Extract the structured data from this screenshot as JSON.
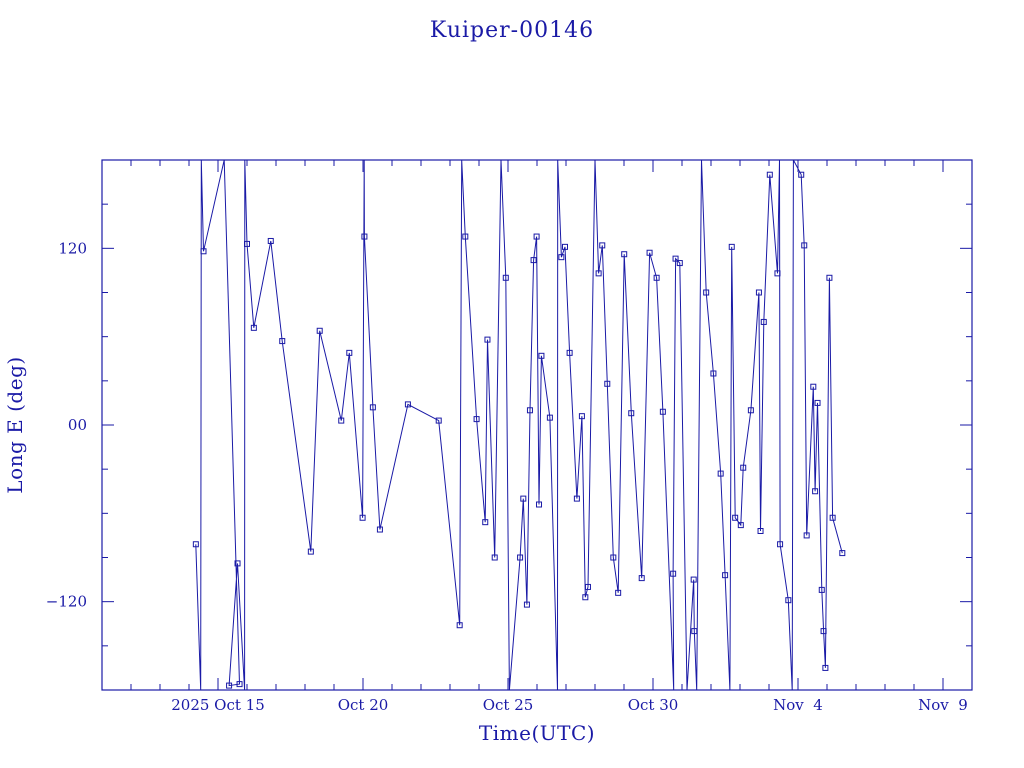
{
  "chart_data": {
    "type": "line",
    "title": "Kuiper-00146",
    "xlabel": "Time(UTC)",
    "ylabel": "Long E (deg)",
    "ylim": [
      -180,
      180
    ],
    "xlim": [
      "2025-10-11T00:00",
      "2025-11-10T00:00"
    ],
    "xticks": [
      {
        "date": "2025-10-15",
        "label": "2025 Oct 15"
      },
      {
        "date": "2025-10-20",
        "label": "Oct 20"
      },
      {
        "date": "2025-10-25",
        "label": "Oct 25"
      },
      {
        "date": "2025-10-30",
        "label": "Oct 30"
      },
      {
        "date": "2025-11-04",
        "label": "Nov  4"
      },
      {
        "date": "2025-11-09",
        "label": "Nov  9"
      }
    ],
    "yticks": [
      {
        "value": 120,
        "label": "120"
      },
      {
        "value": 0,
        "label": "00"
      },
      {
        "value": -120,
        "label": "−120"
      }
    ],
    "grid": false,
    "marker": "square",
    "color": "#1a1aa6",
    "series": [
      {
        "points": [
          [
            "2025-10-14T05:40",
            -81
          ],
          [
            "2025-10-14T09:40",
            -180
          ],
          [
            "2025-10-14T10:10",
            180
          ],
          [
            "2025-10-14T12:00",
            118
          ],
          [
            "2025-10-15T05:10",
            180
          ],
          [
            "2025-10-15T17:50",
            -176
          ],
          [
            "2025-10-15T09:10",
            -177
          ],
          [
            "2025-10-15T16:10",
            -94
          ],
          [
            "2025-10-15T22:00",
            -180
          ],
          [
            "2025-10-15T22:10",
            180
          ],
          [
            "2025-10-16T00:00",
            123
          ],
          [
            "2025-10-16T05:40",
            66
          ],
          [
            "2025-10-16T19:40",
            125
          ],
          [
            "2025-10-17T05:10",
            57
          ],
          [
            "2025-10-18T04:50",
            -86
          ],
          [
            "2025-10-18T12:10",
            64
          ],
          [
            "2025-10-19T06:00",
            3
          ],
          [
            "2025-10-19T12:40",
            49
          ],
          [
            "2025-10-19T23:40",
            -63
          ],
          [
            "2025-10-20T01:00",
            180
          ],
          [
            "2025-10-20T01:10",
            128
          ],
          [
            "2025-10-20T08:10",
            12
          ],
          [
            "2025-10-20T14:00",
            -71
          ],
          [
            "2025-10-21T13:10",
            14
          ],
          [
            "2025-10-22T14:40",
            3
          ],
          [
            "2025-10-23T08:00",
            -136
          ],
          [
            "2025-10-23T09:40",
            180
          ],
          [
            "2025-10-23T12:40",
            128
          ],
          [
            "2025-10-23T22:00",
            4
          ],
          [
            "2025-10-24T05:10",
            -66
          ],
          [
            "2025-10-24T07:00",
            58
          ],
          [
            "2025-10-24T13:00",
            -90
          ],
          [
            "2025-10-24T18:10",
            180
          ],
          [
            "2025-10-24T22:10",
            100
          ],
          [
            "2025-10-25T01:10",
            -180
          ],
          [
            "2025-10-25T10:00",
            -90
          ],
          [
            "2025-10-25T12:40",
            -50
          ],
          [
            "2025-10-25T15:40",
            -122
          ],
          [
            "2025-10-25T18:10",
            10
          ],
          [
            "2025-10-25T21:10",
            112
          ],
          [
            "2025-10-25T23:40",
            128
          ],
          [
            "2025-10-26T01:40",
            -54
          ],
          [
            "2025-10-26T03:40",
            47
          ],
          [
            "2025-10-26T10:40",
            5
          ],
          [
            "2025-10-26T17:00",
            -180
          ],
          [
            "2025-10-26T17:10",
            180
          ],
          [
            "2025-10-26T20:10",
            114
          ],
          [
            "2025-10-26T23:10",
            121
          ],
          [
            "2025-10-27T03:00",
            49
          ],
          [
            "2025-10-27T09:00",
            -50
          ],
          [
            "2025-10-27T13:10",
            6
          ],
          [
            "2025-10-27T16:00",
            -117
          ],
          [
            "2025-10-27T18:10",
            -110
          ],
          [
            "2025-10-28T00:00",
            180
          ],
          [
            "2025-10-28T03:00",
            103
          ],
          [
            "2025-10-28T06:00",
            122
          ],
          [
            "2025-10-28T10:10",
            28
          ],
          [
            "2025-10-28T15:10",
            -90
          ],
          [
            "2025-10-28T19:10",
            -114
          ],
          [
            "2025-10-29T00:10",
            116
          ],
          [
            "2025-10-29T06:00",
            8
          ],
          [
            "2025-10-29T14:40",
            -104
          ],
          [
            "2025-10-29T21:10",
            117
          ],
          [
            "2025-10-30T03:00",
            100
          ],
          [
            "2025-10-30T08:10",
            9
          ],
          [
            "2025-10-30T17:10",
            -180
          ],
          [
            "2025-10-30T16:40",
            -101
          ],
          [
            "2025-10-30T18:40",
            113
          ],
          [
            "2025-10-30T22:10",
            110
          ],
          [
            "2025-10-31T04:10",
            -180
          ],
          [
            "2025-10-31T09:40",
            -105
          ],
          [
            "2025-10-31T10:10",
            -140
          ],
          [
            "2025-10-31T12:10",
            -180
          ],
          [
            "2025-10-31T16:10",
            180
          ],
          [
            "2025-10-31T20:00",
            90
          ],
          [
            "2025-11-01T02:00",
            35
          ],
          [
            "2025-11-01T08:00",
            -33
          ],
          [
            "2025-11-01T11:40",
            -102
          ],
          [
            "2025-11-01T15:40",
            -180
          ],
          [
            "2025-11-01T17:10",
            121
          ],
          [
            "2025-11-01T20:00",
            -63
          ],
          [
            "2025-11-02T00:40",
            -68
          ],
          [
            "2025-11-02T02:40",
            -29
          ],
          [
            "2025-11-02T09:00",
            10
          ],
          [
            "2025-11-02T15:40",
            90
          ],
          [
            "2025-11-02T17:00",
            -72
          ],
          [
            "2025-11-02T19:40",
            70
          ],
          [
            "2025-11-03T00:40",
            170
          ],
          [
            "2025-11-03T07:00",
            103
          ],
          [
            "2025-11-03T08:40",
            180
          ],
          [
            "2025-11-03T09:10",
            -81
          ],
          [
            "2025-11-03T16:00",
            -119
          ],
          [
            "2025-11-03T19:10",
            -180
          ],
          [
            "2025-11-03T20:10",
            180
          ],
          [
            "2025-11-04T02:40",
            170
          ],
          [
            "2025-11-04T05:10",
            122
          ],
          [
            "2025-11-04T07:10",
            -75
          ],
          [
            "2025-11-04T12:40",
            26
          ],
          [
            "2025-11-04T14:10",
            -45
          ],
          [
            "2025-11-04T16:10",
            15
          ],
          [
            "2025-11-04T19:40",
            -112
          ],
          [
            "2025-11-04T21:10",
            -140
          ],
          [
            "2025-11-04T22:40",
            -165
          ],
          [
            "2025-11-05T02:00",
            100
          ],
          [
            "2025-11-05T04:40",
            -63
          ],
          [
            "2025-11-05T12:40",
            -87
          ]
        ]
      }
    ]
  }
}
